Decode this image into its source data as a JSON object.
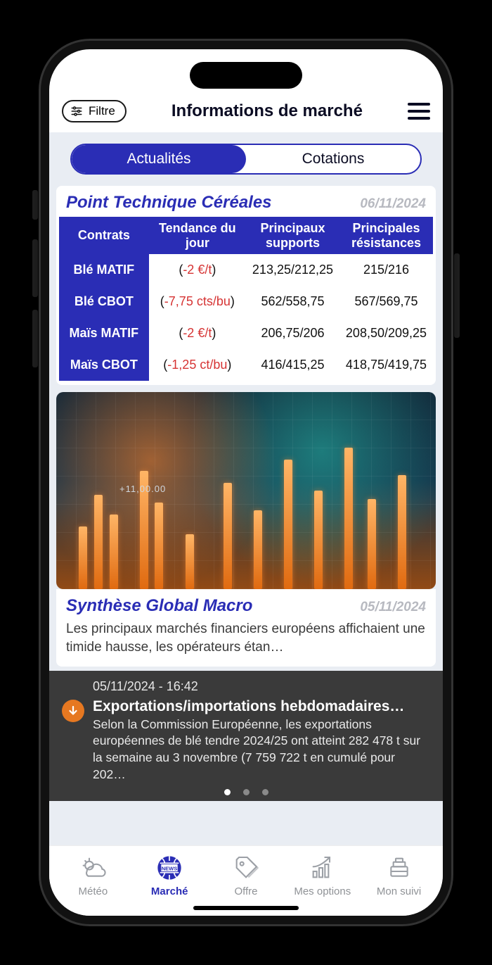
{
  "header": {
    "filter_label": "Filtre",
    "page_title": "Informations de marché"
  },
  "segmented": {
    "tabs": [
      "Actualités",
      "Cotations"
    ],
    "active_index": 0
  },
  "tech_card": {
    "title": "Point Technique Céréales",
    "date": "06/11/2024",
    "columns": [
      "Contrats",
      "Tendance du jour",
      "Principaux supports",
      "Principales résistances"
    ],
    "rows": [
      {
        "contract": "Blé MATIF",
        "trend_prefix": "(",
        "trend_value": "-2 €/t",
        "trend_suffix": ")",
        "support": "213,25/212,25",
        "resist": "215/216"
      },
      {
        "contract": "Blé CBOT",
        "trend_prefix": "(",
        "trend_value": "-7,75 cts/bu",
        "trend_suffix": ")",
        "support": "562/558,75",
        "resist": "567/569,75"
      },
      {
        "contract": "Maïs MATIF",
        "trend_prefix": "(",
        "trend_value": "-2 €/t",
        "trend_suffix": ")",
        "support": "206,75/206",
        "resist": "208,50/209,25"
      },
      {
        "contract": "Maïs CBOT",
        "trend_prefix": "(",
        "trend_value": "-1,25 ct/bu",
        "trend_suffix": ")",
        "support": "416/415,25",
        "resist": "418,75/419,75"
      }
    ],
    "colors": {
      "header_bg": "#2a2db5",
      "header_fg": "#ffffff",
      "trend_negative": "#d63434"
    }
  },
  "hero": {
    "overlay_label": "+11,00.00"
  },
  "article": {
    "title": "Synthèse Global Macro",
    "date": "05/11/2024",
    "body": "Les principaux marchés financiers européens affichaient une timide hausse, les opérateurs étan…"
  },
  "banner": {
    "timestamp": "05/11/2024 - 16:42",
    "title": "Exportations/importations hebdomadaires…",
    "body": "Selon la Commission Européenne, les exportations européennes de blé tendre 2024/25 ont atteint 282 478 t sur la semaine au 3 novembre (7 759 722 t en cumulé pour 202…",
    "page_count": 3,
    "active_page": 0
  },
  "bottom_nav": {
    "items": [
      {
        "id": "meteo",
        "label": "Météo"
      },
      {
        "id": "marche",
        "label": "Marché"
      },
      {
        "id": "offre",
        "label": "Offre"
      },
      {
        "id": "options",
        "label": "Mes options"
      },
      {
        "id": "suivi",
        "label": "Mon suivi"
      }
    ],
    "active_id": "marche"
  }
}
